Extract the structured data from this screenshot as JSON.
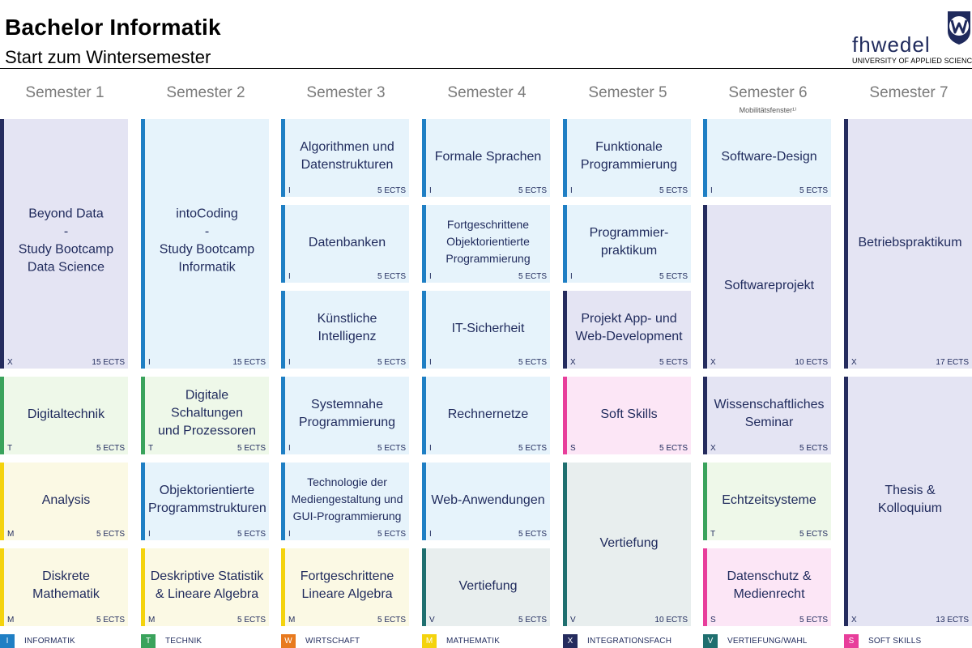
{
  "header": {
    "title": "Bachelor Informatik",
    "subtitle": "Start zum Wintersemester"
  },
  "logo": {
    "word": "fhwedel",
    "subline": "UNIVERSITY OF APPLIED SCIENCES"
  },
  "colors": {
    "I": "#1f7fc4",
    "T": "#3aa35c",
    "W": "#e87a1e",
    "M": "#f4d30d",
    "X": "#252c5e",
    "V": "#1f6f6f",
    "S": "#e83e9b"
  },
  "semesters": [
    {
      "label": "Semester 1",
      "note": "",
      "modules": [
        {
          "name": "Beyond Data\n-\nStudy Bootcamp\nData Science",
          "code": "X",
          "ects": "15 ECTS"
        },
        {
          "name": "Digitaltechnik",
          "code": "T",
          "ects": "5 ECTS"
        },
        {
          "name": "Analysis",
          "code": "M",
          "ects": "5 ECTS"
        },
        {
          "name": "Diskrete Mathematik",
          "code": "M",
          "ects": "5 ECTS"
        }
      ]
    },
    {
      "label": "Semester 2",
      "note": "",
      "modules": [
        {
          "name": "intoCoding\n-\nStudy Bootcamp\nInformatik",
          "code": "I",
          "ects": "15 ECTS"
        },
        {
          "name": "Digitale Schaltungen\nund Prozessoren",
          "code": "T",
          "ects": "5 ECTS"
        },
        {
          "name": "Objektorientierte\nProgrammstrukturen",
          "code": "I",
          "ects": "5 ECTS"
        },
        {
          "name": "Deskriptive Statistik\n& Lineare Algebra",
          "code": "M",
          "ects": "5 ECTS"
        }
      ]
    },
    {
      "label": "Semester 3",
      "note": "",
      "modules": [
        {
          "name": "Algorithmen und\nDatenstrukturen",
          "code": "I",
          "ects": "5 ECTS"
        },
        {
          "name": "Datenbanken",
          "code": "I",
          "ects": "5 ECTS"
        },
        {
          "name": "Künstliche\nIntelligenz",
          "code": "I",
          "ects": "5 ECTS"
        },
        {
          "name": "Systemnahe\nProgrammierung",
          "code": "I",
          "ects": "5 ECTS"
        },
        {
          "name": "Technologie der\nMediengestaltung und\nGUI-Programmierung",
          "code": "I",
          "ects": "5 ECTS"
        },
        {
          "name": "Fortgeschrittene\nLineare Algebra",
          "code": "M",
          "ects": "5 ECTS"
        }
      ]
    },
    {
      "label": "Semester 4",
      "note": "",
      "modules": [
        {
          "name": "Formale Sprachen",
          "code": "I",
          "ects": "5 ECTS"
        },
        {
          "name": "Fortgeschrittene\nObjektorientierte\nProgrammierung",
          "code": "I",
          "ects": "5 ECTS"
        },
        {
          "name": "IT-Sicherheit",
          "code": "I",
          "ects": "5 ECTS"
        },
        {
          "name": "Rechnernetze",
          "code": "I",
          "ects": "5 ECTS"
        },
        {
          "name": "Web-Anwendungen",
          "code": "I",
          "ects": "5 ECTS"
        },
        {
          "name": "Vertiefung",
          "code": "V",
          "ects": "5 ECTS"
        }
      ]
    },
    {
      "label": "Semester 5",
      "note": "",
      "modules": [
        {
          "name": "Funktionale\nProgrammierung",
          "code": "I",
          "ects": "5 ECTS"
        },
        {
          "name": "Programmier-\npraktikum",
          "code": "I",
          "ects": "5 ECTS"
        },
        {
          "name": "Projekt App- und\nWeb-Development",
          "code": "X",
          "ects": "5 ECTS"
        },
        {
          "name": "Soft Skills",
          "code": "S",
          "ects": "5 ECTS"
        },
        {
          "name": "Vertiefung",
          "code": "V",
          "ects": "10 ECTS"
        }
      ]
    },
    {
      "label": "Semester 6",
      "note": "Mobilitätsfenster¹⁾",
      "modules": [
        {
          "name": "Software-Design",
          "code": "I",
          "ects": "5 ECTS"
        },
        {
          "name": "Softwareprojekt",
          "code": "X",
          "ects": "10 ECTS"
        },
        {
          "name": "Wissenschaftliches\nSeminar",
          "code": "X",
          "ects": "5 ECTS"
        },
        {
          "name": "Echtzeitsysteme",
          "code": "T",
          "ects": "5 ECTS"
        },
        {
          "name": "Datenschutz &\nMedienrecht",
          "code": "S",
          "ects": "5 ECTS"
        }
      ]
    },
    {
      "label": "Semester 7",
      "note": "",
      "modules": [
        {
          "name": "Betriebspraktikum",
          "code": "X",
          "ects": "17 ECTS"
        },
        {
          "name": "Thesis & Kolloquium",
          "code": "X",
          "ects": "13 ECTS"
        }
      ]
    }
  ],
  "legend": [
    {
      "code": "I",
      "label": "INFORMATIK"
    },
    {
      "code": "T",
      "label": "TECHNIK"
    },
    {
      "code": "W",
      "label": "WIRTSCHAFT"
    },
    {
      "code": "M",
      "label": "MATHEMATIK"
    },
    {
      "code": "X",
      "label": "INTEGRATIONSFACH"
    },
    {
      "code": "V",
      "label": "VERTIEFUNG/WAHL"
    },
    {
      "code": "S",
      "label": "SOFT SKILLS"
    }
  ]
}
